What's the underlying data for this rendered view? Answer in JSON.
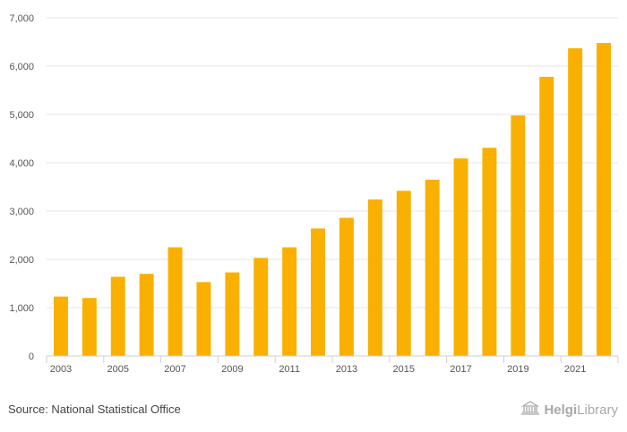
{
  "chart_data": {
    "type": "bar",
    "title": "",
    "xlabel": "",
    "ylabel": "",
    "ylim": [
      0,
      7000
    ],
    "yticks": [
      0,
      1000,
      2000,
      3000,
      4000,
      5000,
      6000,
      7000
    ],
    "ytick_labels": [
      "0",
      "1,000",
      "2,000",
      "3,000",
      "4,000",
      "5,000",
      "6,000",
      "7,000"
    ],
    "categories": [
      "2003",
      "2004",
      "2005",
      "2006",
      "2007",
      "2008",
      "2009",
      "2010",
      "2011",
      "2012",
      "2013",
      "2014",
      "2015",
      "2016",
      "2017",
      "2018",
      "2019",
      "2020",
      "2021",
      "2022"
    ],
    "xtick_labels": [
      "2003",
      "2005",
      "2007",
      "2009",
      "2011",
      "2013",
      "2015",
      "2017",
      "2019",
      "2021"
    ],
    "values": [
      1230,
      1200,
      1640,
      1700,
      2250,
      1530,
      1730,
      2030,
      2250,
      2640,
      2860,
      3240,
      3420,
      3650,
      4090,
      4310,
      4980,
      5780,
      6370,
      6480
    ],
    "bar_color": "#F9B000",
    "grid": true
  },
  "footer": {
    "source": "Source: National Statistical Office",
    "brand_a": "Helgi",
    "brand_b": "Library"
  }
}
